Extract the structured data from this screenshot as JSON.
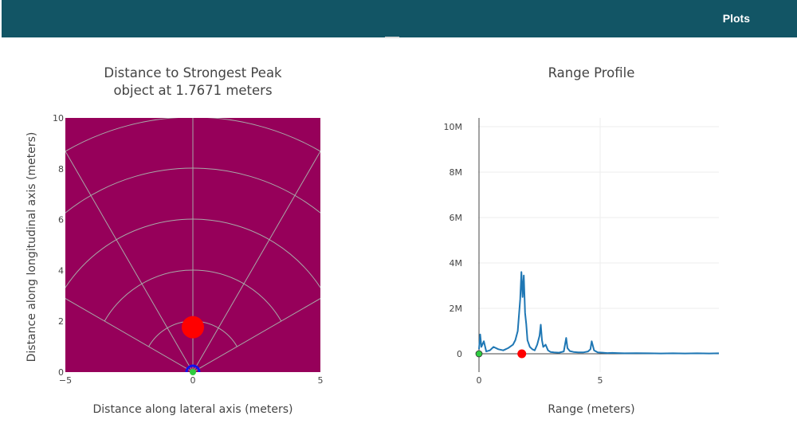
{
  "header": {
    "nav_label": "Plots",
    "bar_color": "#125565"
  },
  "left_plot": {
    "title_line1": "Distance to Strongest Peak",
    "title_line2": "object at 1.7671 meters",
    "xlabel": "Distance along lateral axis (meters)",
    "ylabel": "Distance along longitudinal axis (meters)",
    "xticks": [
      "−5",
      "0",
      "5"
    ],
    "yticks": [
      "0",
      "2",
      "4",
      "6",
      "8",
      "10"
    ],
    "background_color": "#96005a",
    "peak_color": "#ff0000"
  },
  "right_plot": {
    "title": "Range Profile",
    "xlabel": "Range (meters)",
    "xticks": [
      "0",
      "5"
    ],
    "yticks": [
      "0",
      "2M",
      "4M",
      "6M",
      "8M",
      "10M"
    ],
    "line_color": "#1f77b4",
    "origin_marker_color": "#2ecc40",
    "peak_marker_color": "#ff0000"
  },
  "chart_data": [
    {
      "type": "scatter",
      "title": "Distance to Strongest Peak",
      "subtitle": "object at 1.7671 meters",
      "xlabel": "Distance along lateral axis (meters)",
      "ylabel": "Distance along longitudinal axis (meters)",
      "xlim": [
        -5,
        5
      ],
      "ylim": [
        0,
        10
      ],
      "polar_grid": {
        "range_rings": [
          2,
          4,
          6,
          8,
          10
        ],
        "sector_angles_deg": [
          -60,
          -30,
          0,
          30,
          60
        ]
      },
      "points": [
        {
          "x": 0,
          "y": 1.7671,
          "color": "#ff0000"
        },
        {
          "x": 0,
          "y": 0,
          "color": "#2ecc40"
        }
      ],
      "grid": true
    },
    {
      "type": "line",
      "title": "Range Profile",
      "xlabel": "Range (meters)",
      "xlim": [
        0,
        9.9
      ],
      "ylim": [
        0,
        10400000
      ],
      "x": [
        0,
        0.05,
        0.1,
        0.2,
        0.3,
        0.45,
        0.6,
        0.8,
        1.0,
        1.2,
        1.4,
        1.5,
        1.6,
        1.7,
        1.75,
        1.8,
        1.85,
        1.9,
        1.95,
        2.0,
        2.1,
        2.2,
        2.3,
        2.4,
        2.5,
        2.55,
        2.6,
        2.65,
        2.75,
        2.85,
        2.95,
        3.1,
        3.3,
        3.5,
        3.6,
        3.65,
        3.75,
        3.9,
        4.1,
        4.3,
        4.5,
        4.6,
        4.65,
        4.75,
        4.9,
        5.1,
        5.3,
        5.5,
        5.7,
        6.0,
        6.5,
        7.0,
        7.5,
        8.0,
        8.5,
        9.0,
        9.5,
        9.9
      ],
      "y": [
        200000,
        850000,
        300000,
        550000,
        100000,
        150000,
        300000,
        200000,
        150000,
        250000,
        400000,
        600000,
        1000000,
        2400000,
        3600000,
        2500000,
        3450000,
        1800000,
        1300000,
        600000,
        300000,
        200000,
        150000,
        400000,
        800000,
        1280000,
        600000,
        300000,
        400000,
        150000,
        80000,
        60000,
        50000,
        100000,
        700000,
        250000,
        120000,
        80000,
        60000,
        60000,
        100000,
        200000,
        550000,
        150000,
        60000,
        50000,
        30000,
        40000,
        30000,
        20000,
        25000,
        20000,
        15000,
        20000,
        15000,
        20000,
        15000,
        20000
      ],
      "markers": [
        {
          "x": 0,
          "y": 0,
          "color": "#2ecc40"
        },
        {
          "x": 1.7671,
          "y": 0,
          "color": "#ff0000"
        }
      ],
      "grid": true
    }
  ]
}
